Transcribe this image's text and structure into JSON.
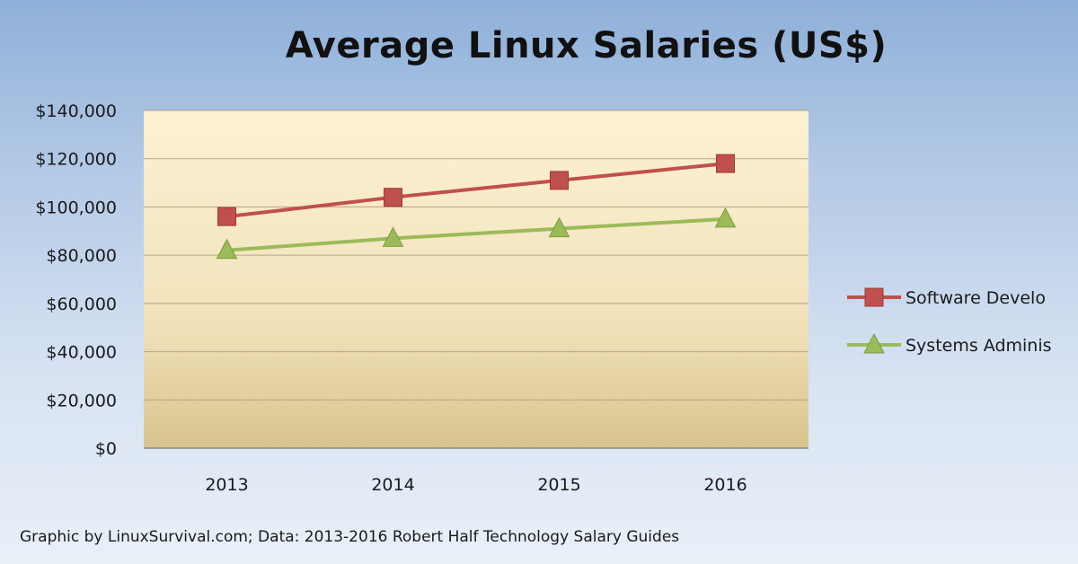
{
  "chart_data": {
    "type": "line",
    "title": "Average Linux Salaries (US$)",
    "xlabel": "",
    "ylabel": "",
    "categories": [
      "2013",
      "2014",
      "2015",
      "2016"
    ],
    "y_ticks": [
      "$0",
      "$20,000",
      "$40,000",
      "$60,000",
      "$80,000",
      "$100,000",
      "$120,000",
      "$140,000"
    ],
    "ylim": [
      0,
      140000
    ],
    "grid": true,
    "legend_position": "right",
    "series": [
      {
        "name": "Software Develo",
        "values": [
          96000,
          104000,
          111000,
          118000
        ],
        "color": "#c0504d",
        "marker": "square"
      },
      {
        "name": "Systems Adminis",
        "values": [
          82000,
          87000,
          91000,
          95000
        ],
        "color": "#9bbb59",
        "marker": "triangle"
      }
    ]
  },
  "footer": "Graphic by LinuxSurvival.com; Data: 2013-2016 Robert Half Technology Salary Guides"
}
